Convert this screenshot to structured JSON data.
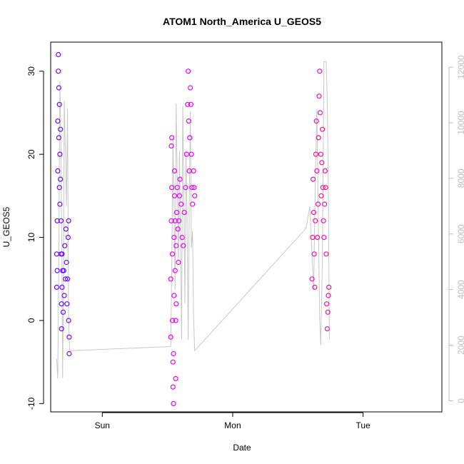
{
  "chart_data": {
    "type": "scatter",
    "title": "ATOM1 North_America U_GEOS5",
    "xlabel": "Date",
    "ylabel": "U_GEOS5",
    "x_ticks": [
      "Sun",
      "Mon",
      "Tue"
    ],
    "x_tick_positions_hours": [
      0,
      24,
      48
    ],
    "xlim_hours": [
      -9.5,
      62.5
    ],
    "ylim": [
      -11,
      33.5
    ],
    "y_ticks": [
      -10,
      0,
      10,
      20,
      30
    ],
    "y2_ticks": [
      0,
      2000,
      4000,
      6000,
      8000,
      10000,
      12000
    ],
    "y2lim": [
      -400,
      12900
    ],
    "y2_color": "#bdbdbd",
    "grid": false,
    "legend": "none",
    "series": [
      {
        "color": "#6a0dff",
        "points": [
          [
            -8.4,
            4
          ],
          [
            -8.4,
            8
          ],
          [
            -8.3,
            6
          ],
          [
            -8.3,
            12
          ],
          [
            -8.2,
            18
          ],
          [
            -8.2,
            24
          ],
          [
            -8.1,
            30
          ],
          [
            -8.1,
            32
          ],
          [
            -8.0,
            28
          ],
          [
            -8.0,
            22
          ],
          [
            -7.9,
            16
          ],
          [
            -7.9,
            26
          ],
          [
            -7.8,
            20
          ],
          [
            -7.8,
            14
          ],
          [
            -7.7,
            23
          ],
          [
            -7.7,
            17
          ],
          [
            -7.6,
            12
          ],
          [
            -7.6,
            8
          ],
          [
            -7.5,
            2
          ],
          [
            -7.5,
            -1
          ],
          [
            -7.4,
            4
          ],
          [
            -7.4,
            8
          ],
          [
            -7.3,
            6
          ],
          [
            -7.2,
            1
          ],
          [
            -7.1,
            6
          ],
          [
            -7.0,
            3
          ],
          [
            -6.9,
            9
          ],
          [
            -6.8,
            5
          ],
          [
            -6.7,
            11
          ],
          [
            -6.6,
            7
          ],
          [
            -6.5,
            2
          ],
          [
            -6.4,
            5
          ],
          [
            -6.3,
            10
          ],
          [
            -6.2,
            12
          ],
          [
            -6.2,
            0
          ],
          [
            -6.1,
            -2
          ],
          [
            -6.1,
            -4
          ]
        ]
      },
      {
        "color": "#ee00ff",
        "points": [
          [
            12.6,
            -2
          ],
          [
            12.6,
            5
          ],
          [
            12.7,
            12
          ],
          [
            12.7,
            21
          ],
          [
            12.8,
            22
          ],
          [
            12.8,
            16
          ],
          [
            12.9,
            8
          ],
          [
            12.9,
            0
          ],
          [
            13.0,
            -5
          ],
          [
            13.0,
            -8
          ],
          [
            13.1,
            -10
          ],
          [
            13.1,
            -4
          ],
          [
            13.2,
            3
          ],
          [
            13.2,
            10
          ],
          [
            13.3,
            15
          ],
          [
            13.3,
            18
          ],
          [
            13.4,
            12
          ],
          [
            13.4,
            6
          ],
          [
            13.5,
            0
          ],
          [
            13.5,
            -7
          ],
          [
            13.6,
            2
          ],
          [
            13.6,
            9
          ],
          [
            13.7,
            13
          ],
          [
            13.8,
            16
          ],
          [
            13.9,
            11
          ],
          [
            14.0,
            7
          ],
          [
            14.1,
            12
          ],
          [
            14.2,
            15
          ],
          [
            14.3,
            17
          ],
          [
            14.5,
            14
          ],
          [
            14.7,
            10
          ],
          [
            14.9,
            9
          ],
          [
            15.1,
            13
          ],
          [
            15.3,
            16
          ],
          [
            15.5,
            20
          ],
          [
            15.7,
            26
          ],
          [
            15.8,
            30
          ],
          [
            15.9,
            24
          ],
          [
            16.0,
            18
          ],
          [
            16.1,
            22
          ],
          [
            16.2,
            28
          ],
          [
            16.3,
            26
          ],
          [
            16.4,
            20
          ],
          [
            16.5,
            16
          ],
          [
            16.6,
            14
          ],
          [
            16.8,
            18
          ],
          [
            16.9,
            16
          ],
          [
            17.0,
            15
          ]
        ]
      },
      {
        "color": "#ff1493",
        "points": [
          [
            38.6,
            5
          ],
          [
            38.7,
            10
          ],
          [
            38.8,
            17
          ],
          [
            38.9,
            13
          ],
          [
            39.0,
            8
          ],
          [
            39.1,
            4
          ],
          [
            39.2,
            12
          ],
          [
            39.3,
            20
          ],
          [
            39.4,
            24
          ],
          [
            39.5,
            18
          ],
          [
            39.6,
            10
          ],
          [
            39.7,
            14
          ],
          [
            39.8,
            22
          ],
          [
            39.9,
            27
          ],
          [
            40.0,
            30
          ],
          [
            40.1,
            25
          ],
          [
            40.2,
            20
          ],
          [
            40.3,
            15
          ],
          [
            40.4,
            19
          ],
          [
            40.5,
            23
          ],
          [
            40.6,
            16
          ],
          [
            40.7,
            12
          ],
          [
            40.8,
            10
          ],
          [
            40.9,
            14
          ],
          [
            41.0,
            18
          ],
          [
            41.1,
            16
          ],
          [
            41.2,
            8
          ],
          [
            41.3,
            2
          ],
          [
            41.4,
            -1
          ],
          [
            41.5,
            1
          ],
          [
            41.6,
            3
          ],
          [
            41.7,
            4
          ]
        ]
      }
    ],
    "secondary_line": {
      "color": "#c8c8c8",
      "points": [
        [
          -8.4,
          1500
        ],
        [
          -8.2,
          800
        ],
        [
          -8.0,
          5000
        ],
        [
          -7.8,
          11500
        ],
        [
          -7.6,
          9000
        ],
        [
          -7.4,
          4000
        ],
        [
          -7.3,
          800
        ],
        [
          -7.2,
          3000
        ],
        [
          -7.0,
          10800
        ],
        [
          -6.8,
          9000
        ],
        [
          -6.6,
          7000
        ],
        [
          -6.4,
          10500
        ],
        [
          -6.2,
          3000
        ],
        [
          -6.0,
          1800
        ],
        [
          12.6,
          1950
        ],
        [
          12.8,
          5000
        ],
        [
          13.0,
          9500
        ],
        [
          13.2,
          7000
        ],
        [
          13.4,
          4000
        ],
        [
          13.6,
          10700
        ],
        [
          13.8,
          8000
        ],
        [
          14.0,
          5000
        ],
        [
          14.2,
          9000
        ],
        [
          14.4,
          6000
        ],
        [
          14.6,
          2200
        ],
        [
          14.8,
          10600
        ],
        [
          15.0,
          7500
        ],
        [
          15.2,
          3500
        ],
        [
          15.4,
          9000
        ],
        [
          15.6,
          6500
        ],
        [
          15.8,
          2200
        ],
        [
          16.0,
          7000
        ],
        [
          16.2,
          10400
        ],
        [
          16.4,
          5500
        ],
        [
          16.6,
          6100
        ],
        [
          16.8,
          3000
        ],
        [
          17.0,
          1800
        ],
        [
          37.5,
          6200
        ],
        [
          38.2,
          7000
        ],
        [
          38.6,
          5200
        ],
        [
          38.9,
          4000
        ],
        [
          39.2,
          8000
        ],
        [
          39.5,
          10500
        ],
        [
          39.8,
          6000
        ],
        [
          40.0,
          3000
        ],
        [
          40.2,
          2000
        ],
        [
          40.5,
          5000
        ],
        [
          40.8,
          12200
        ],
        [
          41.2,
          12200
        ],
        [
          41.4,
          10800
        ],
        [
          41.6,
          7800
        ],
        [
          41.8,
          2200
        ]
      ]
    }
  }
}
